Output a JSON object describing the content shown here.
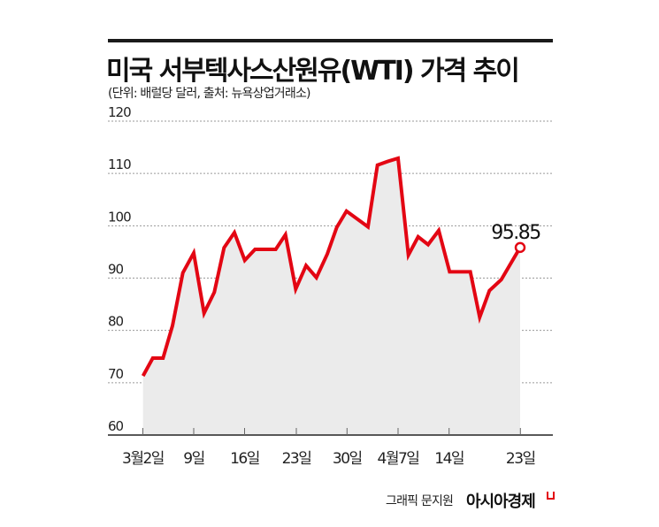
{
  "header": {
    "title": "미국 서부텍사스산원유(WTI) 가격 추이",
    "subtitle": "(단위: 배럴당 달러, 출처: 뉴욕상업거래소)"
  },
  "footer": {
    "credit": "그래픽 문지원",
    "brand": "아시아경제"
  },
  "colors": {
    "line": "#e30613",
    "fill": "#ebebeb",
    "grid": "#9a9a9a",
    "axis": "#222222"
  },
  "chart_data": {
    "type": "line",
    "title": "미국 서부텍사스산원유(WTI) 가격 추이",
    "subtitle": "(단위: 배럴당 달러, 출처: 뉴욕상업거래소)",
    "xlabel": "",
    "ylabel": "배럴당 달러",
    "ylim": [
      60,
      120
    ],
    "yticks": [
      60,
      70,
      80,
      90,
      100,
      110,
      120
    ],
    "ytick_labels": [
      "60",
      "70",
      "80",
      "90",
      "100",
      "110",
      "120"
    ],
    "xtick_labels": [
      "3월2일",
      "9일",
      "16일",
      "23일",
      "30일",
      "4월7일",
      "14일",
      "23일"
    ],
    "grid": true,
    "legend": null,
    "end_label": "95.85",
    "series": [
      {
        "name": "WTI",
        "values": [
          71.3,
          74.7,
          74.7,
          80.9,
          91.0,
          94.8,
          83.3,
          87.3,
          95.8,
          98.7,
          93.4,
          95.5,
          95.5,
          98.3,
          87.9,
          92.4,
          90.1,
          94.6,
          99.7,
          102.8,
          99.8,
          111.6,
          112.3,
          112.9,
          94.4,
          97.9,
          96.4,
          99.1,
          91.2,
          91.2,
          82.5,
          87.6,
          89.7,
          95.85
        ]
      }
    ]
  }
}
